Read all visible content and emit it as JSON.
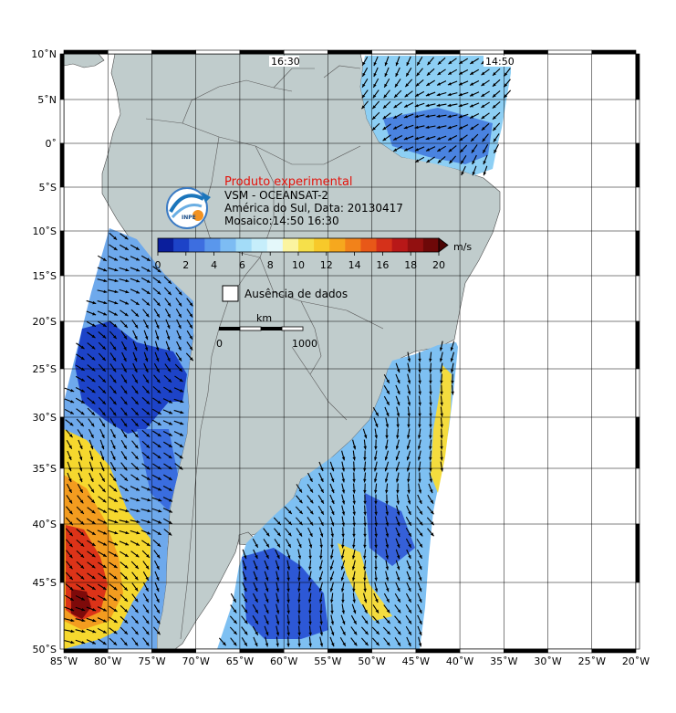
{
  "panel": {
    "title": "Produto experimental",
    "line1": "VSM - OCEANSAT-2",
    "line2": "América do Sul, Data: 20130417",
    "line3": "Mosaico:14:50 16:30",
    "logo_text": "INPE"
  },
  "pass_times": [
    "16:30",
    "14:50"
  ],
  "colorbar": {
    "unit": "m/s",
    "ticks": [
      "0",
      "2",
      "4",
      "6",
      "8",
      "10",
      "12",
      "14",
      "16",
      "18",
      "20"
    ],
    "colors": [
      "#0a1e9c",
      "#1d43c8",
      "#3d6ee0",
      "#5a97ec",
      "#7dbcf3",
      "#a3dcf8",
      "#c6eefb",
      "#e4f8fa",
      "#fbf4a0",
      "#f6e04a",
      "#f7c92a",
      "#f6a81e",
      "#f2821a",
      "#e85818",
      "#d5311a",
      "#b81818",
      "#921010",
      "#6e0808"
    ]
  },
  "legend": {
    "no_data": "Ausência de dados"
  },
  "scale": {
    "label": "km",
    "start": "0",
    "end": "1000"
  },
  "lat_labels": [
    "10˚N",
    "5˚N",
    "0˚",
    "5˚S",
    "10˚S",
    "15˚S",
    "20˚S",
    "25˚S",
    "30˚S",
    "35˚S",
    "40˚S",
    "45˚S",
    "50˚S"
  ],
  "lon_labels": [
    "85˚W",
    "80˚W",
    "75˚W",
    "70˚W",
    "65˚W",
    "60˚W",
    "55˚W",
    "50˚W",
    "45˚W",
    "40˚W",
    "35˚W",
    "30˚W",
    "25˚W",
    "20˚W"
  ],
  "colors": {
    "land": "#c0cccc",
    "ocean": "#ffffff",
    "wind_arrow": "#000000"
  }
}
